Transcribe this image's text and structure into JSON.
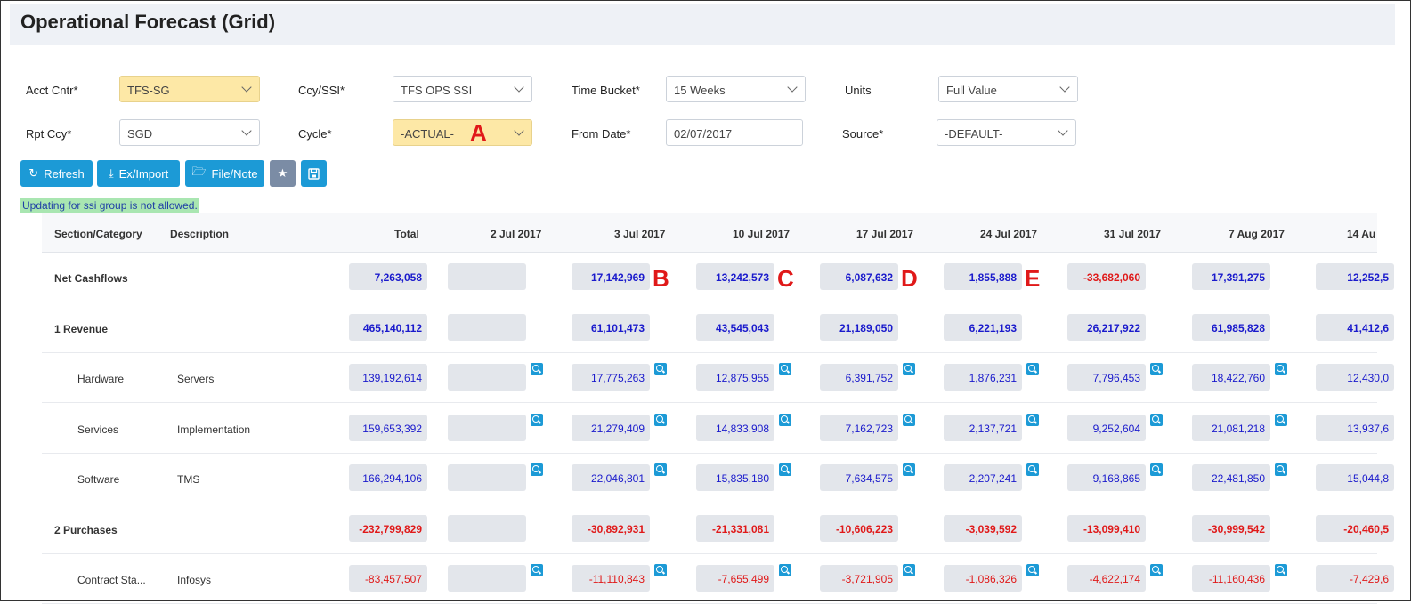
{
  "title": "Operational Forecast (Grid)",
  "filters": {
    "acct_cntr": {
      "label": "Acct Cntr*",
      "value": "TFS-SG"
    },
    "ccy_ssi": {
      "label": "Ccy/SSI*",
      "value": "TFS OPS SSI"
    },
    "time_bucket": {
      "label": "Time Bucket*",
      "value": "15 Weeks"
    },
    "units": {
      "label": "Units",
      "value": "Full Value"
    },
    "rpt_ccy": {
      "label": "Rpt Ccy*",
      "value": "SGD"
    },
    "cycle": {
      "label": "Cycle*",
      "value": "-ACTUAL-"
    },
    "from_date": {
      "label": "From Date*",
      "value": "02/07/2017"
    },
    "source": {
      "label": "Source*",
      "value": "-DEFAULT-"
    }
  },
  "toolbar": {
    "refresh": "Refresh",
    "ex_import": "Ex/Import",
    "file_note": "File/Note"
  },
  "notice": "Updating for ssi group is not allowed.",
  "annotations": [
    "A",
    "B",
    "C",
    "D",
    "E"
  ],
  "grid": {
    "headers": [
      "Section/Category",
      "Description",
      "Total",
      "2 Jul 2017",
      "3 Jul 2017",
      "10 Jul 2017",
      "17 Jul 2017",
      "24 Jul 2017",
      "31 Jul 2017",
      "7 Aug 2017",
      "14 Au"
    ],
    "rows": [
      {
        "section": "Net Cashflows",
        "description": "",
        "type": "bold",
        "total": "7,263,058",
        "values": [
          "",
          "17,142,969",
          "13,242,573",
          "6,087,632",
          "1,855,888",
          "-33,682,060",
          "17,391,275",
          "12,252,5"
        ]
      },
      {
        "section": "1 Revenue",
        "description": "",
        "type": "bold",
        "total": "465,140,112",
        "values": [
          "",
          "61,101,473",
          "43,545,043",
          "21,189,050",
          "6,221,193",
          "26,217,922",
          "61,985,828",
          "41,412,6"
        ]
      },
      {
        "section": "Hardware",
        "description": "Servers",
        "type": "sub",
        "total": "139,192,614",
        "values": [
          "",
          "17,775,263",
          "12,875,955",
          "6,391,752",
          "1,876,231",
          "7,796,453",
          "18,422,760",
          "12,430,0"
        ]
      },
      {
        "section": "Services",
        "description": "Implementation",
        "type": "sub",
        "total": "159,653,392",
        "values": [
          "",
          "21,279,409",
          "14,833,908",
          "7,162,723",
          "2,137,721",
          "9,252,604",
          "21,081,218",
          "13,937,6"
        ]
      },
      {
        "section": "Software",
        "description": "TMS",
        "type": "sub",
        "total": "166,294,106",
        "values": [
          "",
          "22,046,801",
          "15,835,180",
          "7,634,575",
          "2,207,241",
          "9,168,865",
          "22,481,850",
          "15,044,8"
        ]
      },
      {
        "section": "2 Purchases",
        "description": "",
        "type": "bold",
        "total": "-232,799,829",
        "values": [
          "",
          "-30,892,931",
          "-21,331,081",
          "-10,606,223",
          "-3,039,592",
          "-13,099,410",
          "-30,999,542",
          "-20,460,5"
        ]
      },
      {
        "section": "Contract Sta...",
        "description": "Infosys",
        "type": "sub",
        "total": "-83,457,507",
        "values": [
          "",
          "-11,110,843",
          "-7,655,499",
          "-3,721,905",
          "-1,086,326",
          "-4,622,174",
          "-11,160,436",
          "-7,429,6"
        ]
      }
    ]
  }
}
